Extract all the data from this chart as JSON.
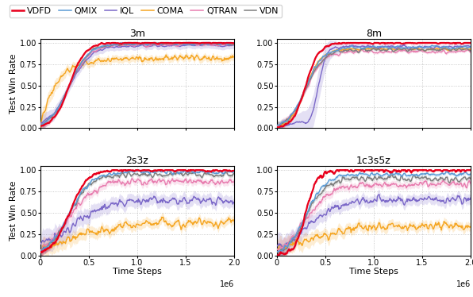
{
  "title_3m": "3m",
  "title_8m": "8m",
  "title_2s3z": "2s3z",
  "title_1c3s5z": "1c3s5z",
  "xlabel": "Time Steps",
  "ylabel": "Test Win Rate",
  "x_max": 2000000,
  "x_ticks": [
    0,
    500000,
    1000000,
    1500000,
    2000000
  ],
  "x_tick_labels": [
    "0",
    "0.5",
    "1.0",
    "1.5",
    "2.0"
  ],
  "ylim": [
    0.0,
    1.05
  ],
  "y_ticks": [
    0.0,
    0.25,
    0.5,
    0.75,
    1.0
  ],
  "algorithms": [
    "VDFD",
    "QMIX",
    "IQL",
    "COMA",
    "QTRAN",
    "VDN"
  ],
  "colors": {
    "VDFD": "#e8001c",
    "QMIX": "#5b9bd5",
    "IQL": "#7b68c8",
    "COMA": "#f5a623",
    "QTRAN": "#e87eb0",
    "VDN": "#7f7f7f"
  },
  "linewidths": {
    "VDFD": 1.6,
    "QMIX": 1.0,
    "IQL": 1.0,
    "COMA": 1.0,
    "QTRAN": 1.0,
    "VDN": 1.0
  },
  "n_points": 400
}
